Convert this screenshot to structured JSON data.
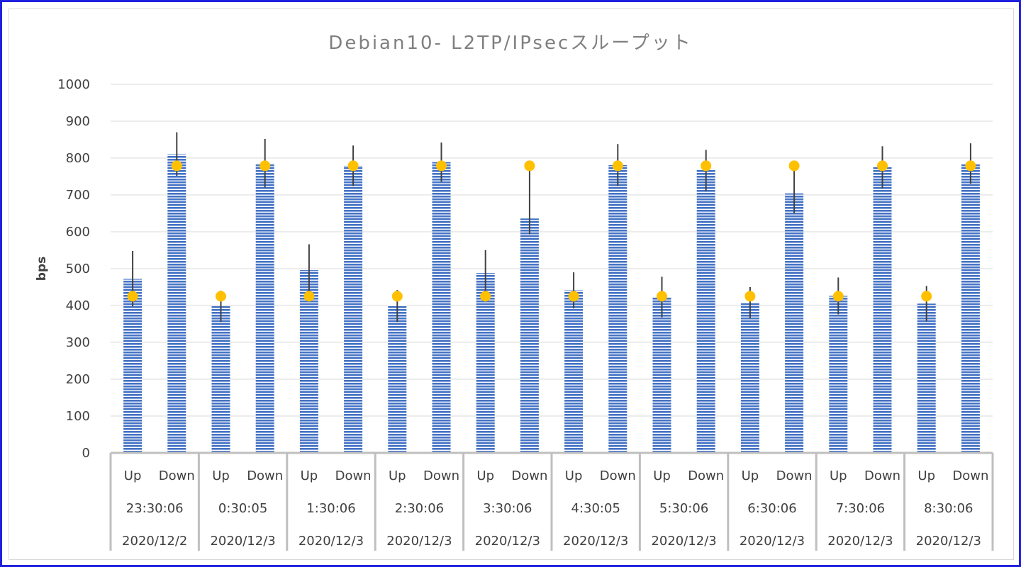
{
  "chart_data": {
    "type": "bar",
    "title": "Debian10- L2TP/IPsecスループット",
    "ylabel": "bps",
    "xlabel": "",
    "ylim": [
      0,
      1000
    ],
    "yticks": [
      0,
      100,
      200,
      300,
      400,
      500,
      600,
      700,
      800,
      900,
      1000
    ],
    "grid": true,
    "legend": "none",
    "bar_color": "#4472c4",
    "marker_color": "#ffc000",
    "errorbar_color": "#404040",
    "groups": [
      {
        "time": "23:30:06",
        "date": "2020/12/2"
      },
      {
        "time": "0:30:05",
        "date": "2020/12/3"
      },
      {
        "time": "1:30:06",
        "date": "2020/12/3"
      },
      {
        "time": "2:30:06",
        "date": "2020/12/3"
      },
      {
        "time": "3:30:06",
        "date": "2020/12/3"
      },
      {
        "time": "4:30:05",
        "date": "2020/12/3"
      },
      {
        "time": "5:30:06",
        "date": "2020/12/3"
      },
      {
        "time": "6:30:06",
        "date": "2020/12/3"
      },
      {
        "time": "7:30:06",
        "date": "2020/12/3"
      },
      {
        "time": "8:30:06",
        "date": "2020/12/3"
      }
    ],
    "directions": [
      "Up",
      "Down"
    ],
    "values": [
      [
        472,
        810
      ],
      [
        398,
        785
      ],
      [
        496,
        779
      ],
      [
        400,
        789
      ],
      [
        488,
        636
      ],
      [
        441,
        781
      ],
      [
        422,
        768
      ],
      [
        407,
        704
      ],
      [
        426,
        775
      ],
      [
        405,
        785
      ]
    ],
    "error_high": [
      [
        548,
        870
      ],
      [
        440,
        852
      ],
      [
        566,
        834
      ],
      [
        442,
        842
      ],
      [
        550,
        778
      ],
      [
        490,
        838
      ],
      [
        478,
        822
      ],
      [
        450,
        778
      ],
      [
        476,
        832
      ],
      [
        453,
        840
      ]
    ],
    "error_low": [
      [
        398,
        752
      ],
      [
        355,
        720
      ],
      [
        425,
        724
      ],
      [
        355,
        736
      ],
      [
        425,
        593
      ],
      [
        392,
        724
      ],
      [
        368,
        710
      ],
      [
        365,
        650
      ],
      [
        376,
        718
      ],
      [
        357,
        730
      ]
    ],
    "markers": [
      [
        425,
        779
      ],
      [
        425,
        779
      ],
      [
        425,
        779
      ],
      [
        425,
        779
      ],
      [
        425,
        779
      ],
      [
        425,
        779
      ],
      [
        425,
        779
      ],
      [
        425,
        779
      ],
      [
        425,
        779
      ],
      [
        425,
        779
      ]
    ]
  }
}
